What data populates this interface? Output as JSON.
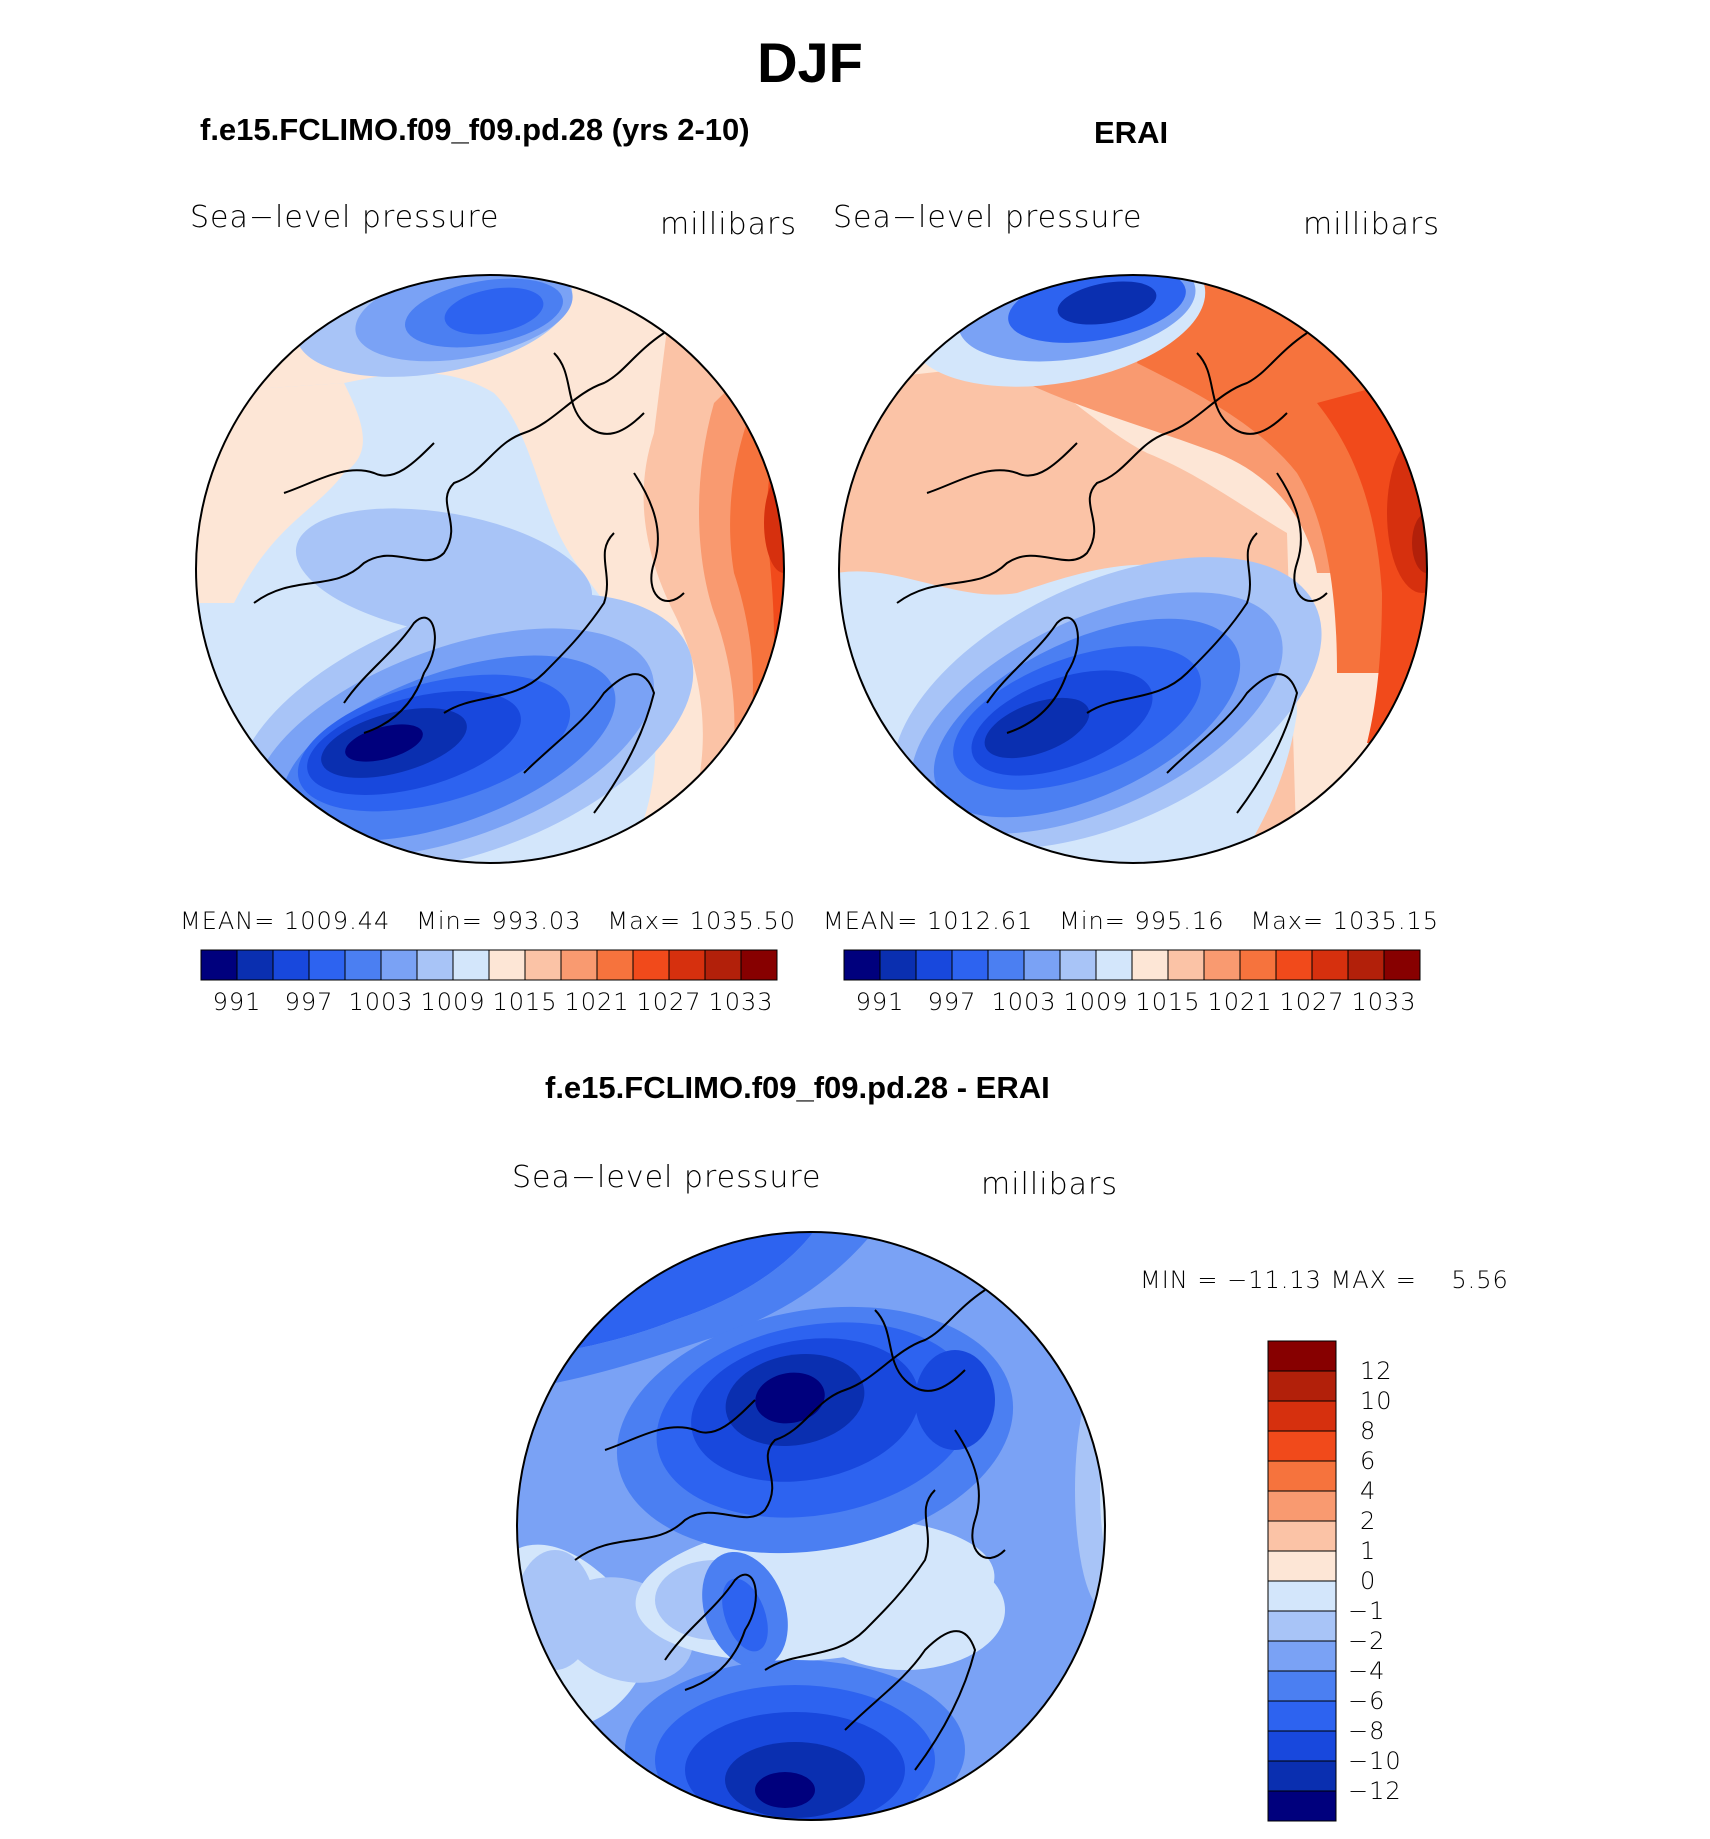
{
  "page_title": "DJF",
  "panels": [
    {
      "id": "model",
      "title": "f.e15.FCLIMO.f09_f09.pd.28 (yrs 2-10)",
      "variable_label": "Sea−level pressure",
      "units_label": "millibars",
      "stats": {
        "mean_label": "MEAN=",
        "mean": "1009.44",
        "min_label": "Min=",
        "min": "993.03",
        "max_label": "Max=",
        "max": "1035.50"
      }
    },
    {
      "id": "obs",
      "title": "ERAI",
      "variable_label": "Sea−level pressure",
      "units_label": "millibars",
      "stats": {
        "mean_label": "MEAN=",
        "mean": "1012.61",
        "min_label": "Min=",
        "min": "995.16",
        "max_label": "Max=",
        "max": "1035.15"
      }
    },
    {
      "id": "diff",
      "title": "f.e15.FCLIMO.f09_f09.pd.28 - ERAI",
      "variable_label": "Sea−level pressure",
      "units_label": "millibars",
      "stats_text": "MIN = −11.13 MAX =    5.56"
    }
  ],
  "chart_data": [
    {
      "type": "heatmap",
      "projection": "north-polar-stereographic",
      "title": "f.e15.FCLIMO.f09_f09.pd.28 (yrs 2-10)",
      "variable": "Sea-level pressure",
      "units": "millibars",
      "mean": 1009.44,
      "min": 993.03,
      "max": 1035.5,
      "colorbar": {
        "orientation": "horizontal",
        "levels": [
          991,
          994,
          997,
          1000,
          1003,
          1006,
          1009,
          1012,
          1015,
          1018,
          1021,
          1024,
          1027,
          1030,
          1033
        ],
        "tick_labels": [
          "991",
          "997",
          "1003",
          "1009",
          "1015",
          "1021",
          "1027",
          "1033"
        ],
        "colors": [
          "#00007d",
          "#0a2fb0",
          "#1848dd",
          "#2d63f0",
          "#4b7ff2",
          "#7aa2f5",
          "#a8c4f7",
          "#d3e6fb",
          "#fde6d6",
          "#fbc3a6",
          "#f99a70",
          "#f6733d",
          "#f14a1b",
          "#d6300e",
          "#b2200a",
          "#870000"
        ]
      }
    },
    {
      "type": "heatmap",
      "projection": "north-polar-stereographic",
      "title": "ERAI",
      "variable": "Sea-level pressure",
      "units": "millibars",
      "mean": 1012.61,
      "min": 995.16,
      "max": 1035.15,
      "colorbar": {
        "orientation": "horizontal",
        "levels": [
          991,
          994,
          997,
          1000,
          1003,
          1006,
          1009,
          1012,
          1015,
          1018,
          1021,
          1024,
          1027,
          1030,
          1033
        ],
        "tick_labels": [
          "991",
          "997",
          "1003",
          "1009",
          "1015",
          "1021",
          "1027",
          "1033"
        ],
        "colors": [
          "#00007d",
          "#0a2fb0",
          "#1848dd",
          "#2d63f0",
          "#4b7ff2",
          "#7aa2f5",
          "#a8c4f7",
          "#d3e6fb",
          "#fde6d6",
          "#fbc3a6",
          "#f99a70",
          "#f6733d",
          "#f14a1b",
          "#d6300e",
          "#b2200a",
          "#870000"
        ]
      }
    },
    {
      "type": "heatmap",
      "projection": "north-polar-stereographic",
      "title": "f.e15.FCLIMO.f09_f09.pd.28 - ERAI",
      "variable": "Sea-level pressure",
      "units": "millibars",
      "min": -11.13,
      "max": 5.56,
      "colorbar": {
        "orientation": "vertical",
        "levels": [
          12,
          10,
          8,
          6,
          4,
          2,
          1,
          0,
          -1,
          -2,
          -4,
          -6,
          -8,
          -10,
          -12
        ],
        "tick_labels": [
          "12",
          "10",
          "8",
          "6",
          "4",
          "2",
          "1",
          "0",
          "−1",
          "−2",
          "−4",
          "−6",
          "−8",
          "−10",
          "−12"
        ],
        "colors": [
          "#870000",
          "#b2200a",
          "#d6300e",
          "#f14a1b",
          "#f6733d",
          "#f99a70",
          "#fbc3a6",
          "#fde6d6",
          "#d3e6fb",
          "#a8c4f7",
          "#7aa2f5",
          "#4b7ff2",
          "#2d63f0",
          "#1848dd",
          "#0a2fb0",
          "#00007d"
        ]
      }
    }
  ]
}
